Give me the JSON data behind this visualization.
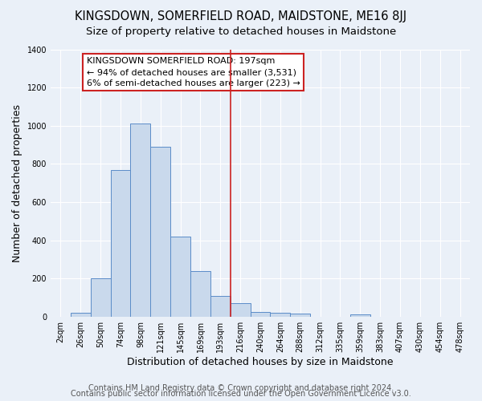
{
  "title": "KINGSDOWN, SOMERFIELD ROAD, MAIDSTONE, ME16 8JJ",
  "subtitle": "Size of property relative to detached houses in Maidstone",
  "xlabel": "Distribution of detached houses by size in Maidstone",
  "ylabel": "Number of detached properties",
  "bar_labels": [
    "2sqm",
    "26sqm",
    "50sqm",
    "74sqm",
    "98sqm",
    "121sqm",
    "145sqm",
    "169sqm",
    "193sqm",
    "216sqm",
    "240sqm",
    "264sqm",
    "288sqm",
    "312sqm",
    "335sqm",
    "359sqm",
    "383sqm",
    "407sqm",
    "430sqm",
    "454sqm",
    "478sqm"
  ],
  "bar_values": [
    0,
    20,
    200,
    770,
    1010,
    890,
    420,
    240,
    110,
    70,
    25,
    20,
    15,
    0,
    0,
    10,
    0,
    0,
    0,
    0,
    0
  ],
  "bar_color": "#c9d9ec",
  "bar_edge_color": "#5b8cc8",
  "vline_x": 8.5,
  "vline_color": "#cc2222",
  "annotation_text": "KINGSDOWN SOMERFIELD ROAD: 197sqm\n← 94% of detached houses are smaller (3,531)\n6% of semi-detached houses are larger (223) →",
  "annotation_box_color": "#ffffff",
  "annotation_box_edge_color": "#cc2222",
  "ylim": [
    0,
    1400
  ],
  "yticks": [
    0,
    200,
    400,
    600,
    800,
    1000,
    1200,
    1400
  ],
  "footer1": "Contains HM Land Registry data © Crown copyright and database right 2024.",
  "footer2": "Contains public sector information licensed under the Open Government Licence v3.0.",
  "bg_color": "#eaf0f8",
  "plot_bg_color": "#eaf0f8",
  "grid_color": "#ffffff",
  "title_fontsize": 10.5,
  "subtitle_fontsize": 9.5,
  "axis_label_fontsize": 9,
  "tick_fontsize": 7,
  "footer_fontsize": 7,
  "annotation_fontsize": 8
}
